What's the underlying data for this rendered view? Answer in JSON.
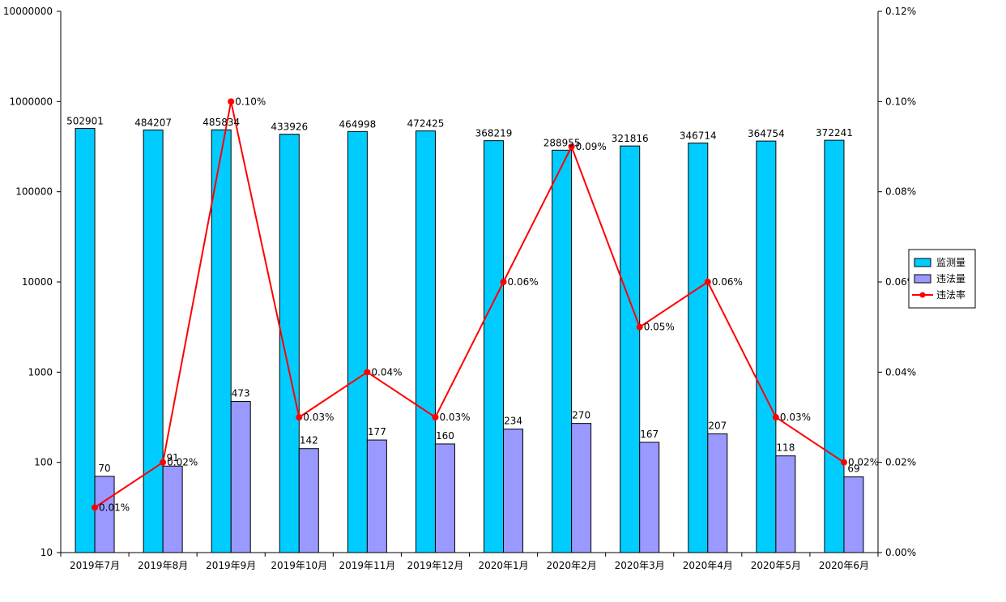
{
  "chart_data": {
    "type": "bar",
    "title": "",
    "xlabel": "",
    "ylabel": "",
    "categories": [
      "2019年7月",
      "2019年8月",
      "2019年9月",
      "2019年10月",
      "2019年11月",
      "2019年12月",
      "2020年1月",
      "2020年2月",
      "2020年3月",
      "2020年4月",
      "2020年5月",
      "2020年6月"
    ],
    "series": [
      {
        "name": "监测量",
        "kind": "bar",
        "axis": "left",
        "color": "#00CCFF",
        "values": [
          502901,
          484207,
          485834,
          433926,
          464998,
          472425,
          368219,
          288955,
          321816,
          346714,
          364754,
          372241
        ]
      },
      {
        "name": "违法量",
        "kind": "bar",
        "axis": "left",
        "color": "#9999FF",
        "values": [
          70,
          91,
          473,
          142,
          177,
          160,
          234,
          270,
          167,
          207,
          118,
          69
        ]
      },
      {
        "name": "违法率",
        "kind": "line",
        "axis": "right",
        "color": "#FF0000",
        "values": [
          0.0001,
          0.0002,
          0.001,
          0.0003,
          0.0004,
          0.0003,
          0.0006,
          0.0009,
          0.0005,
          0.0006,
          0.0003,
          0.0002
        ],
        "labels": [
          "0.01%",
          "0.02%",
          "0.10%",
          "0.03%",
          "0.04%",
          "0.03%",
          "0.06%",
          "0.09%",
          "0.05%",
          "0.06%",
          "0.03%",
          "0.02%"
        ]
      }
    ],
    "y_left": {
      "scale": "log",
      "ylim": [
        10,
        10000000
      ],
      "ticks": [
        10,
        100,
        1000,
        10000,
        100000,
        1000000,
        10000000
      ],
      "tick_labels": [
        "10",
        "100",
        "1000",
        "10000",
        "100000",
        "1000000",
        "10000000"
      ]
    },
    "y_right": {
      "scale": "linear",
      "ylim": [
        0,
        0.0012
      ],
      "ticks": [
        0,
        0.0002,
        0.0004,
        0.0006,
        0.0008,
        0.001,
        0.0012
      ],
      "tick_labels": [
        "0.00%",
        "0.02%",
        "0.04%",
        "0.06%",
        "0.08%",
        "0.10%",
        "0.12%"
      ]
    },
    "grid": false,
    "legend": {
      "position": "right",
      "entries": [
        "监测量",
        "违法量",
        "违法率"
      ]
    }
  }
}
